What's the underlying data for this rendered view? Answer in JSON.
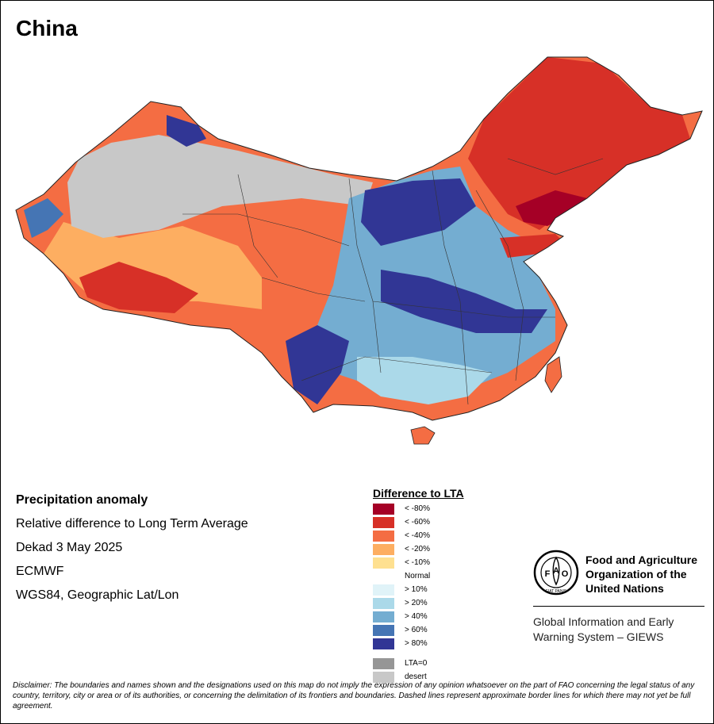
{
  "title": "China",
  "info": [
    "Precipitation anomaly",
    "Relative difference to Long Term Average",
    "Dekad 3 May 2025",
    "ECMWF",
    "WGS84, Geographic Lat/Lon"
  ],
  "legend": {
    "title": "Difference to LTA",
    "items": [
      {
        "label": "< -80%",
        "color": "#a50026"
      },
      {
        "label": "< -60%",
        "color": "#d73027"
      },
      {
        "label": "< -40%",
        "color": "#f46d43"
      },
      {
        "label": "< -20%",
        "color": "#fdae61"
      },
      {
        "label": "< -10%",
        "color": "#fee090"
      },
      {
        "label": "Normal",
        "color": "#ffffff"
      },
      {
        "label": "> 10%",
        "color": "#e0f3f8"
      },
      {
        "label": "> 20%",
        "color": "#abd9e9"
      },
      {
        "label": "> 40%",
        "color": "#74add1"
      },
      {
        "label": "> 60%",
        "color": "#4575b4"
      },
      {
        "label": "> 80%",
        "color": "#313695"
      }
    ],
    "extra": [
      {
        "label": "LTA=0",
        "color": "#969696"
      },
      {
        "label": "desert",
        "color": "#c8c8c8"
      }
    ]
  },
  "fao": {
    "name_lines": [
      "Food and Agriculture",
      "Organization of the",
      "United Nations"
    ],
    "logo_letters": [
      "F",
      "A",
      "O"
    ],
    "logo_motto": "FIAT PANIS",
    "giews_lines": [
      "Global Information and Early",
      "Warning System – GIEWS"
    ]
  },
  "disclaimer": "Disclaimer: The boundaries and names shown and the designations used on this map do not imply the expression of any opinion whatsoever on the part of FAO concerning the legal status of any country, territory, city or area or of its authorities, or concerning the delimitation of its frontiers and boundaries. Dashed lines represent approximate border lines for which there may not yet be full agreement."
}
